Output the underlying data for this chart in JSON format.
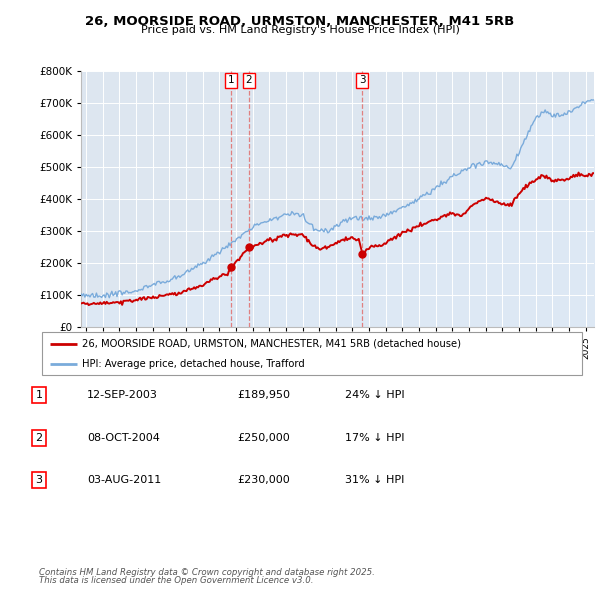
{
  "title": "26, MOORSIDE ROAD, URMSTON, MANCHESTER, M41 5RB",
  "subtitle": "Price paid vs. HM Land Registry's House Price Index (HPI)",
  "legend_line1": "26, MOORSIDE ROAD, URMSTON, MANCHESTER, M41 5RB (detached house)",
  "legend_line2": "HPI: Average price, detached house, Trafford",
  "transactions": [
    {
      "id": 1,
      "date": "12-SEP-2003",
      "price": 189950,
      "year": 2003.71,
      "price_label": "£189,950",
      "label": "24% ↓ HPI"
    },
    {
      "id": 2,
      "date": "08-OCT-2004",
      "price": 250000,
      "year": 2004.77,
      "price_label": "£250,000",
      "label": "17% ↓ HPI"
    },
    {
      "id": 3,
      "date": "03-AUG-2011",
      "price": 230000,
      "year": 2011.59,
      "price_label": "£230,000",
      "label": "31% ↓ HPI"
    }
  ],
  "footer_line1": "Contains HM Land Registry data © Crown copyright and database right 2025.",
  "footer_line2": "This data is licensed under the Open Government Licence v3.0.",
  "background_color": "#dde6f0",
  "red_color": "#cc0000",
  "blue_color": "#7aabdb",
  "blue_fill": "#dde8f4",
  "ylim": [
    0,
    800000
  ],
  "xlim_start": 1994.7,
  "xlim_end": 2025.5
}
